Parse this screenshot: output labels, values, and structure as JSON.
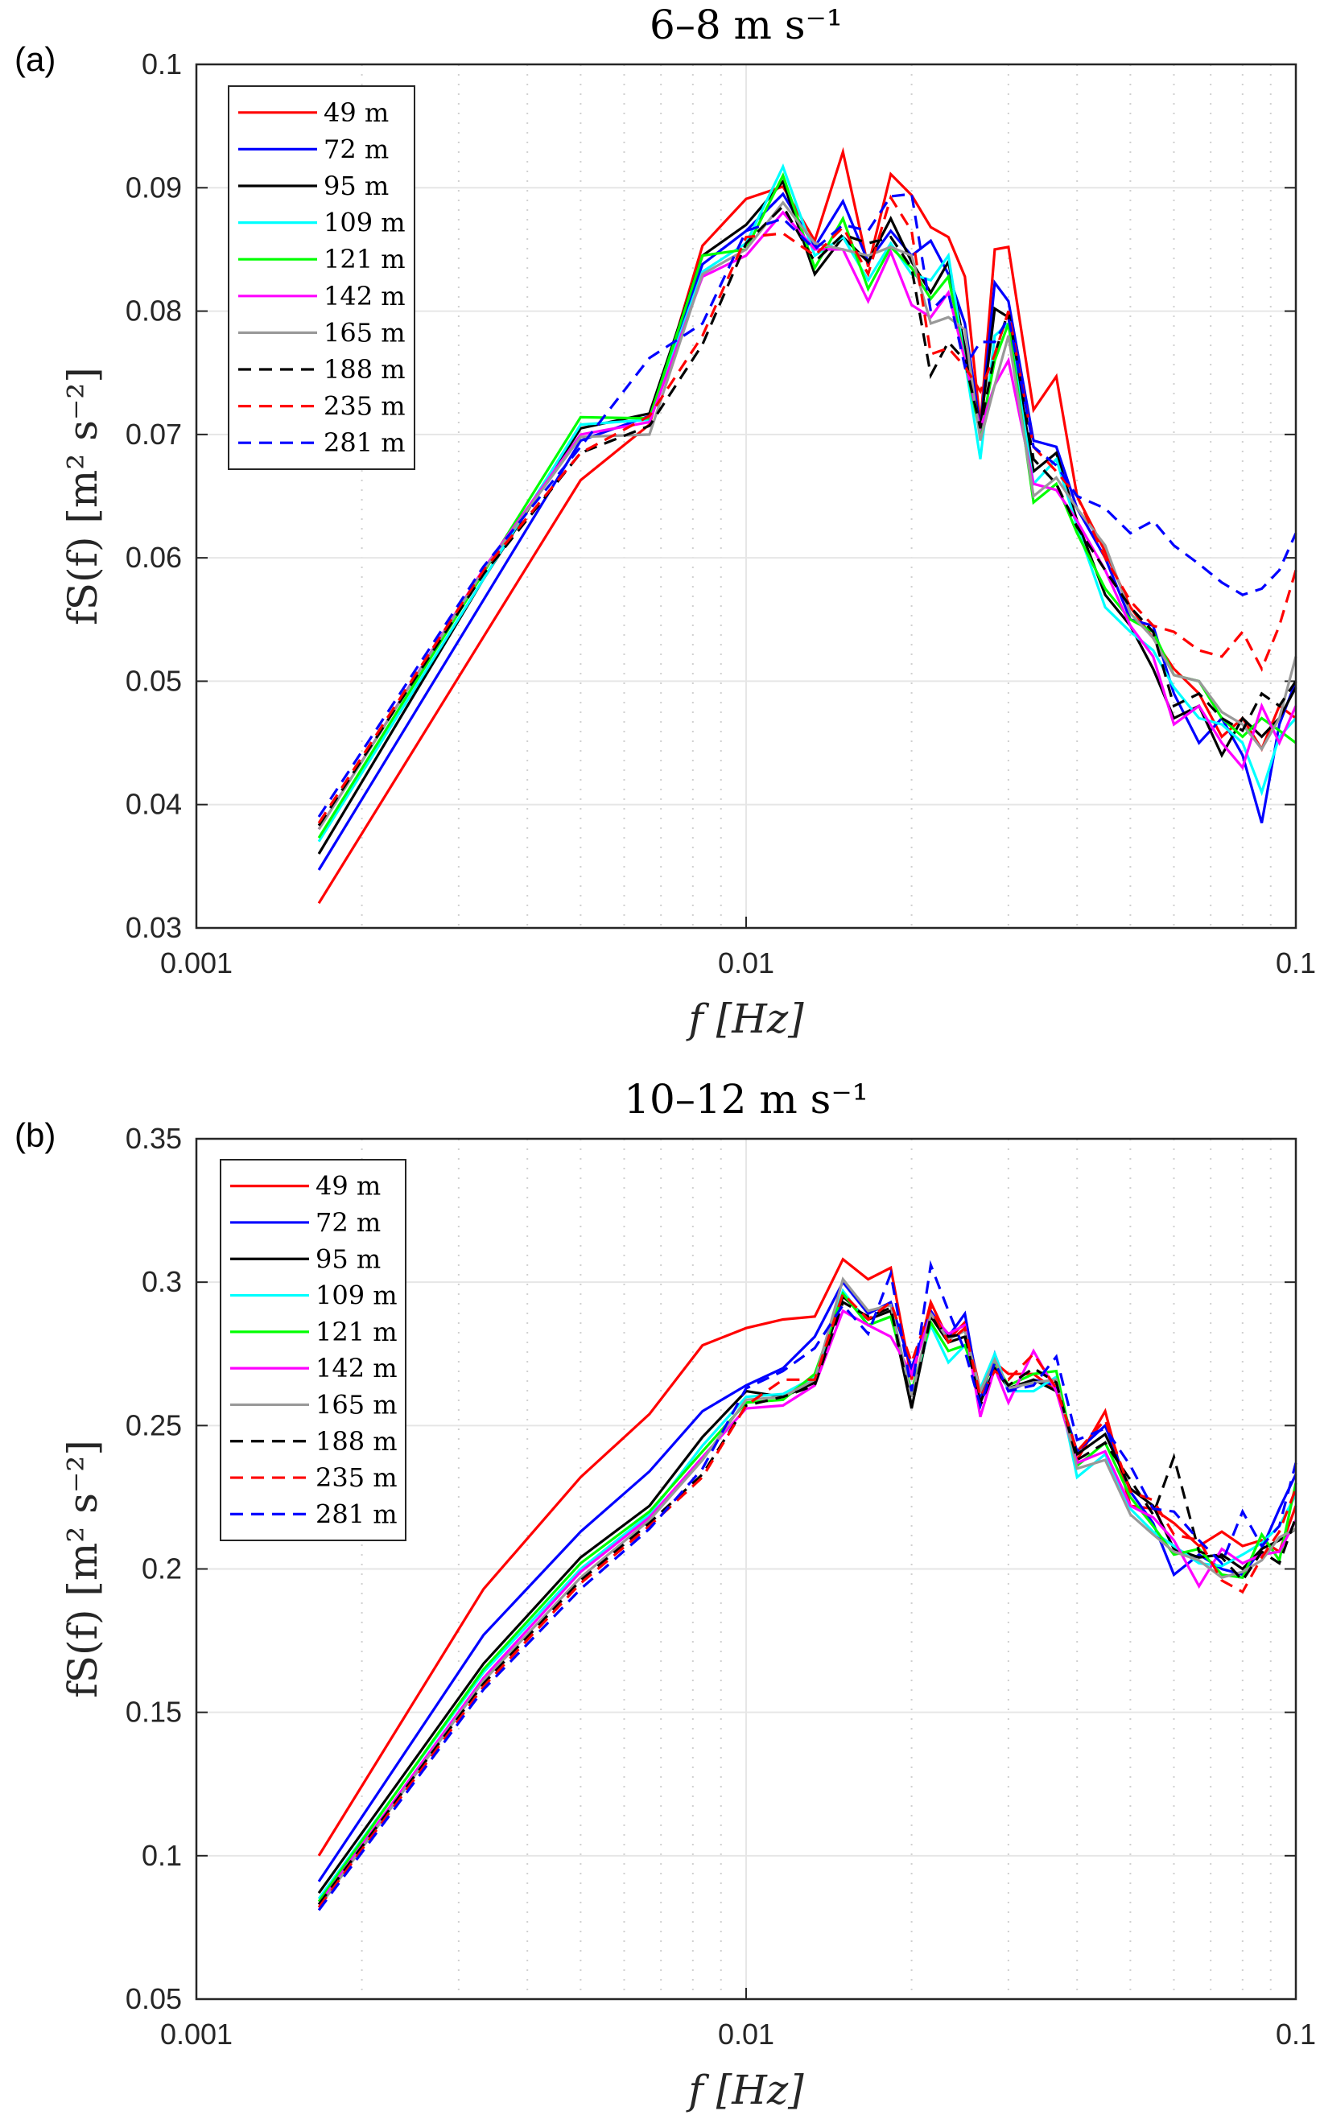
{
  "chart_data": [
    {
      "type": "line",
      "panel_label": "(a)",
      "title": "6–8 m s⁻¹",
      "xlabel": "f  [Hz]",
      "ylabel": "fS(f)  [m² s⁻²]",
      "xscale": "log",
      "xlim": [
        0.001,
        0.1
      ],
      "ylim": [
        0.03,
        0.1
      ],
      "xticks": [
        0.001,
        0.01,
        0.1
      ],
      "xtick_labels": [
        "0.001",
        "0.01",
        "0.1"
      ],
      "yticks": [
        0.03,
        0.04,
        0.05,
        0.06,
        0.07,
        0.08,
        0.09,
        0.1
      ],
      "ytick_labels": [
        "0.03",
        "0.04",
        "0.05",
        "0.06",
        "0.07",
        "0.08",
        "0.09",
        "0.1"
      ],
      "grid": true,
      "legend_position": "top-left",
      "x": [
        0.00167,
        0.00333,
        0.005,
        0.00667,
        0.00833,
        0.01,
        0.01167,
        0.01333,
        0.015,
        0.01667,
        0.01833,
        0.02,
        0.02167,
        0.02333,
        0.025,
        0.02667,
        0.02833,
        0.03,
        0.03333,
        0.03667,
        0.04,
        0.045,
        0.05,
        0.055,
        0.06,
        0.06667,
        0.07333,
        0.08,
        0.08667,
        0.09333,
        0.1
      ],
      "series": [
        {
          "name": "49  m",
          "color": "#ff0000",
          "dash": false,
          "values": [
            0.032,
            0.0536,
            0.0663,
            0.0708,
            0.0853,
            0.0891,
            0.0901,
            0.0857,
            0.0929,
            0.0836,
            0.0911,
            0.0894,
            0.0868,
            0.086,
            0.0828,
            0.0708,
            0.085,
            0.0852,
            0.072,
            0.0747,
            0.065,
            0.0605,
            0.056,
            0.0535,
            0.051,
            0.049,
            0.0455,
            0.047,
            0.0445,
            0.048,
            0.047
          ]
        },
        {
          "name": "72  m",
          "color": "#0000ff",
          "dash": false,
          "values": [
            0.0347,
            0.0566,
            0.0695,
            0.0715,
            0.0838,
            0.0865,
            0.0895,
            0.0852,
            0.0889,
            0.084,
            0.0865,
            0.0845,
            0.0857,
            0.083,
            0.079,
            0.0705,
            0.0823,
            0.0808,
            0.0695,
            0.069,
            0.064,
            0.06,
            0.055,
            0.0545,
            0.049,
            0.045,
            0.047,
            0.044,
            0.0385,
            0.0465,
            0.05
          ]
        },
        {
          "name": "95  m",
          "color": "#000000",
          "dash": false,
          "values": [
            0.036,
            0.0583,
            0.0705,
            0.0717,
            0.0845,
            0.087,
            0.0905,
            0.083,
            0.086,
            0.084,
            0.0875,
            0.084,
            0.0815,
            0.084,
            0.077,
            0.0705,
            0.0802,
            0.0795,
            0.067,
            0.0685,
            0.063,
            0.057,
            0.0545,
            0.051,
            0.047,
            0.048,
            0.044,
            0.047,
            0.0455,
            0.047,
            0.0495
          ]
        },
        {
          "name": "109  m",
          "color": "#00ffff",
          "dash": false,
          "values": [
            0.037,
            0.0583,
            0.0708,
            0.0712,
            0.0832,
            0.0855,
            0.0917,
            0.0845,
            0.086,
            0.0825,
            0.0855,
            0.083,
            0.0825,
            0.0845,
            0.076,
            0.068,
            0.078,
            0.079,
            0.066,
            0.068,
            0.0625,
            0.056,
            0.054,
            0.0525,
            0.0495,
            0.047,
            0.0465,
            0.045,
            0.041,
            0.0455,
            0.047
          ]
        },
        {
          "name": "121  m",
          "color": "#00ff00",
          "dash": false,
          "values": [
            0.0373,
            0.0588,
            0.0714,
            0.0713,
            0.0845,
            0.085,
            0.091,
            0.0835,
            0.0875,
            0.0818,
            0.0852,
            0.0835,
            0.081,
            0.0828,
            0.076,
            0.07,
            0.076,
            0.079,
            0.0645,
            0.066,
            0.062,
            0.0575,
            0.055,
            0.054,
            0.0505,
            0.05,
            0.047,
            0.0455,
            0.047,
            0.046,
            0.045
          ]
        },
        {
          "name": "142  m",
          "color": "#ff00ff",
          "dash": false,
          "values": [
            0.038,
            0.0591,
            0.07,
            0.071,
            0.0828,
            0.0845,
            0.088,
            0.085,
            0.085,
            0.0808,
            0.0848,
            0.0805,
            0.0795,
            0.0815,
            0.076,
            0.0705,
            0.074,
            0.076,
            0.066,
            0.0655,
            0.063,
            0.059,
            0.0545,
            0.052,
            0.0465,
            0.048,
            0.045,
            0.043,
            0.048,
            0.045,
            0.048
          ]
        },
        {
          "name": "165  m",
          "color": "#999999",
          "dash": false,
          "values": [
            0.038,
            0.059,
            0.0698,
            0.07,
            0.083,
            0.085,
            0.0888,
            0.0855,
            0.085,
            0.0845,
            0.0852,
            0.0845,
            0.079,
            0.0795,
            0.0785,
            0.0695,
            0.074,
            0.078,
            0.065,
            0.0665,
            0.064,
            0.061,
            0.0555,
            0.0535,
            0.0505,
            0.05,
            0.0475,
            0.0465,
            0.0445,
            0.047,
            0.052
          ]
        },
        {
          "name": "188  m",
          "color": "#000000",
          "dash": true,
          "values": [
            0.0383,
            0.0587,
            0.0685,
            0.0707,
            0.0773,
            0.0855,
            0.0885,
            0.084,
            0.0862,
            0.0855,
            0.086,
            0.0835,
            0.0748,
            0.0775,
            0.076,
            0.0705,
            0.0765,
            0.08,
            0.068,
            0.066,
            0.0625,
            0.059,
            0.056,
            0.054,
            0.048,
            0.049,
            0.047,
            0.046,
            0.049,
            0.048,
            0.05
          ]
        },
        {
          "name": "235  m",
          "color": "#ff0000",
          "dash": true,
          "values": [
            0.0385,
            0.059,
            0.0685,
            0.0715,
            0.078,
            0.086,
            0.0863,
            0.0845,
            0.0868,
            0.083,
            0.0892,
            0.0865,
            0.0765,
            0.077,
            0.0755,
            0.0735,
            0.0765,
            0.08,
            0.069,
            0.067,
            0.065,
            0.06,
            0.0565,
            0.0545,
            0.054,
            0.0525,
            0.052,
            0.054,
            0.051,
            0.0545,
            0.059
          ]
        },
        {
          "name": "281  m",
          "color": "#0000ff",
          "dash": true,
          "values": [
            0.039,
            0.0593,
            0.069,
            0.0762,
            0.079,
            0.0865,
            0.0875,
            0.085,
            0.087,
            0.0865,
            0.0893,
            0.0895,
            0.08,
            0.0815,
            0.0755,
            0.0775,
            0.0775,
            0.0795,
            0.069,
            0.0675,
            0.065,
            0.064,
            0.062,
            0.063,
            0.061,
            0.0595,
            0.058,
            0.057,
            0.0575,
            0.059,
            0.062
          ]
        }
      ]
    },
    {
      "type": "line",
      "panel_label": "(b)",
      "title": "10–12 m s⁻¹",
      "xlabel": "f  [Hz]",
      "ylabel": "fS(f)  [m² s⁻²]",
      "xscale": "log",
      "xlim": [
        0.001,
        0.1
      ],
      "ylim": [
        0.05,
        0.35
      ],
      "xticks": [
        0.001,
        0.01,
        0.1
      ],
      "xtick_labels": [
        "0.001",
        "0.01",
        "0.1"
      ],
      "yticks": [
        0.05,
        0.1,
        0.15,
        0.2,
        0.25,
        0.3,
        0.35
      ],
      "ytick_labels": [
        "0.05",
        "0.1",
        "0.15",
        "0.2",
        "0.25",
        "0.3",
        "0.35"
      ],
      "grid": true,
      "legend_position": "top-left",
      "x": [
        0.00167,
        0.00333,
        0.005,
        0.00667,
        0.00833,
        0.01,
        0.01167,
        0.01333,
        0.015,
        0.01667,
        0.01833,
        0.02,
        0.02167,
        0.02333,
        0.025,
        0.02667,
        0.02833,
        0.03,
        0.03333,
        0.03667,
        0.04,
        0.045,
        0.05,
        0.055,
        0.06,
        0.06667,
        0.07333,
        0.08,
        0.08667,
        0.09333,
        0.1
      ],
      "series": [
        {
          "name": "49 m",
          "color": "#ff0000",
          "dash": false,
          "values": [
            0.1,
            0.193,
            0.232,
            0.254,
            0.278,
            0.284,
            0.287,
            0.288,
            0.308,
            0.301,
            0.305,
            0.266,
            0.293,
            0.28,
            0.286,
            0.262,
            0.272,
            0.268,
            0.268,
            0.262,
            0.238,
            0.255,
            0.222,
            0.221,
            0.216,
            0.208,
            0.213,
            0.208,
            0.21,
            0.206,
            0.222
          ]
        },
        {
          "name": "72 m",
          "color": "#0000ff",
          "dash": false,
          "values": [
            0.091,
            0.177,
            0.213,
            0.234,
            0.255,
            0.264,
            0.27,
            0.281,
            0.3,
            0.289,
            0.293,
            0.27,
            0.29,
            0.281,
            0.289,
            0.259,
            0.275,
            0.262,
            0.266,
            0.264,
            0.241,
            0.25,
            0.227,
            0.216,
            0.198,
            0.205,
            0.2,
            0.198,
            0.207,
            0.221,
            0.233
          ]
        },
        {
          "name": "95 m",
          "color": "#000000",
          "dash": false,
          "values": [
            0.087,
            0.167,
            0.204,
            0.222,
            0.246,
            0.262,
            0.26,
            0.265,
            0.295,
            0.287,
            0.29,
            0.256,
            0.288,
            0.279,
            0.281,
            0.258,
            0.27,
            0.263,
            0.266,
            0.262,
            0.24,
            0.247,
            0.228,
            0.222,
            0.207,
            0.204,
            0.205,
            0.2,
            0.207,
            0.21,
            0.214
          ]
        },
        {
          "name": "109 m",
          "color": "#00ffff",
          "dash": false,
          "values": [
            0.085,
            0.164,
            0.2,
            0.219,
            0.243,
            0.26,
            0.261,
            0.267,
            0.297,
            0.285,
            0.288,
            0.262,
            0.285,
            0.272,
            0.278,
            0.263,
            0.275,
            0.262,
            0.262,
            0.267,
            0.232,
            0.24,
            0.221,
            0.213,
            0.208,
            0.202,
            0.201,
            0.205,
            0.209,
            0.215,
            0.226
          ]
        },
        {
          "name": "121 m",
          "color": "#00ff00",
          "dash": false,
          "values": [
            0.084,
            0.165,
            0.202,
            0.22,
            0.241,
            0.258,
            0.259,
            0.268,
            0.296,
            0.285,
            0.288,
            0.262,
            0.286,
            0.276,
            0.278,
            0.262,
            0.272,
            0.264,
            0.268,
            0.269,
            0.236,
            0.244,
            0.225,
            0.215,
            0.205,
            0.207,
            0.198,
            0.197,
            0.212,
            0.203,
            0.23
          ]
        },
        {
          "name": "142 m",
          "color": "#ff00ff",
          "dash": false,
          "values": [
            0.083,
            0.162,
            0.199,
            0.218,
            0.239,
            0.256,
            0.257,
            0.264,
            0.29,
            0.285,
            0.281,
            0.268,
            0.289,
            0.282,
            0.285,
            0.253,
            0.27,
            0.258,
            0.276,
            0.262,
            0.237,
            0.241,
            0.222,
            0.218,
            0.21,
            0.194,
            0.207,
            0.202,
            0.205,
            0.206,
            0.217
          ]
        },
        {
          "name": "165 m",
          "color": "#999999",
          "dash": false,
          "values": [
            0.082,
            0.161,
            0.197,
            0.217,
            0.238,
            0.259,
            0.26,
            0.266,
            0.301,
            0.29,
            0.292,
            0.26,
            0.289,
            0.28,
            0.283,
            0.262,
            0.273,
            0.263,
            0.265,
            0.266,
            0.235,
            0.238,
            0.219,
            0.212,
            0.206,
            0.203,
            0.197,
            0.199,
            0.203,
            0.211,
            0.214
          ]
        },
        {
          "name": "188 m",
          "color": "#000000",
          "dash": true,
          "values": [
            0.083,
            0.16,
            0.196,
            0.216,
            0.233,
            0.257,
            0.26,
            0.264,
            0.293,
            0.288,
            0.291,
            0.257,
            0.288,
            0.281,
            0.282,
            0.257,
            0.27,
            0.264,
            0.27,
            0.265,
            0.238,
            0.244,
            0.231,
            0.219,
            0.239,
            0.206,
            0.204,
            0.196,
            0.206,
            0.202,
            0.218
          ]
        },
        {
          "name": "235 m",
          "color": "#ff0000",
          "dash": true,
          "values": [
            0.082,
            0.159,
            0.195,
            0.215,
            0.232,
            0.257,
            0.266,
            0.266,
            0.296,
            0.287,
            0.293,
            0.272,
            0.291,
            0.279,
            0.284,
            0.26,
            0.269,
            0.266,
            0.275,
            0.263,
            0.241,
            0.252,
            0.227,
            0.224,
            0.212,
            0.21,
            0.196,
            0.192,
            0.204,
            0.213,
            0.228
          ]
        },
        {
          "name": "281 m",
          "color": "#0000ff",
          "dash": true,
          "values": [
            0.081,
            0.158,
            0.193,
            0.214,
            0.235,
            0.263,
            0.269,
            0.277,
            0.292,
            0.282,
            0.303,
            0.262,
            0.306,
            0.29,
            0.276,
            0.257,
            0.272,
            0.262,
            0.264,
            0.274,
            0.245,
            0.249,
            0.236,
            0.221,
            0.22,
            0.21,
            0.202,
            0.22,
            0.208,
            0.215,
            0.237
          ]
        }
      ]
    }
  ]
}
